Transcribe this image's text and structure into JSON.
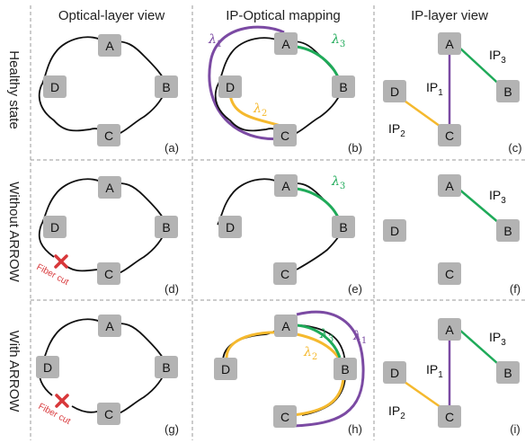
{
  "columns": [
    "Optical-layer view",
    "IP-Optical mapping",
    "IP-layer view"
  ],
  "rows": [
    "Healthy state",
    "Without ARROW",
    "With ARROW"
  ],
  "panel_labels": [
    "(a)",
    "(b)",
    "(c)",
    "(d)",
    "(e)",
    "(f)",
    "(g)",
    "(h)",
    "(i)"
  ],
  "nodes": [
    "A",
    "B",
    "C",
    "D"
  ],
  "ip_links": {
    "ip1": "IP",
    "ip1_sub": "1",
    "ip2": "IP",
    "ip2_sub": "2",
    "ip3": "IP",
    "ip3_sub": "3"
  },
  "wavelengths": {
    "l1": "λ",
    "l1_sub": "1",
    "l2": "λ",
    "l2_sub": "2",
    "l3": "λ",
    "l3_sub": "3"
  },
  "fiber_cut_label": "Fiber cut",
  "colors": {
    "lambda1": "#7b4aa3",
    "lambda2": "#f5b92e",
    "lambda3": "#1faa59",
    "fiber": "#111111",
    "node": "#b3b3b3",
    "cut": "#d8373a",
    "grid": "#9a9a9a"
  }
}
